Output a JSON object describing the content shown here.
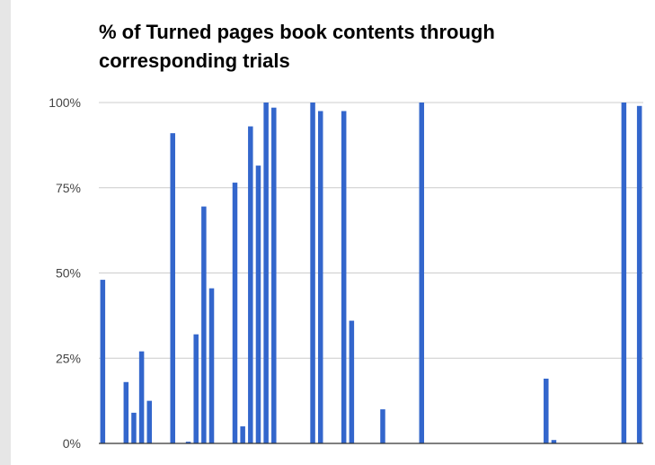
{
  "chart_data": {
    "type": "bar",
    "title": "% of Turned pages book contents through corresponding trials",
    "xlabel": "",
    "ylabel": "",
    "ylim": [
      0,
      100
    ],
    "y_ticks": [
      {
        "value": 0,
        "label": "0%"
      },
      {
        "value": 25,
        "label": "25%"
      },
      {
        "value": 50,
        "label": "50%"
      },
      {
        "value": 75,
        "label": "75%"
      },
      {
        "value": 100,
        "label": "100%"
      }
    ],
    "grid": true,
    "legend": "none",
    "bar_color": "#3366cc",
    "values": [
      48,
      0,
      0,
      18,
      9,
      27,
      12.5,
      0,
      0,
      91,
      0,
      0.5,
      32,
      69.5,
      45.5,
      0,
      0,
      76.5,
      5,
      93,
      81.5,
      100,
      98.5,
      0,
      0,
      0,
      0,
      100,
      97.5,
      0,
      0,
      97.5,
      36,
      0,
      0,
      0,
      10,
      0,
      0,
      0,
      0,
      100,
      0,
      0,
      0,
      0,
      0,
      0,
      0,
      0,
      0,
      0,
      0,
      0,
      0,
      0,
      0,
      19,
      1,
      0,
      0,
      0,
      0,
      0,
      0,
      0,
      0,
      100,
      0,
      99
    ]
  }
}
